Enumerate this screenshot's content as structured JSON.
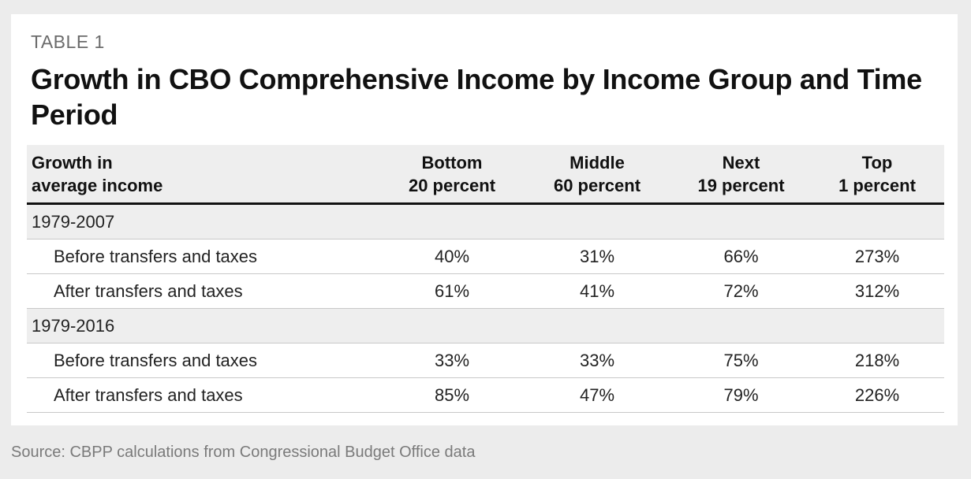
{
  "table": {
    "label": "TABLE 1",
    "title": "Growth in CBO Comprehensive Income by Income Group and Time Period",
    "header": {
      "row_label": [
        "Growth in",
        "average income"
      ],
      "columns": [
        [
          "Bottom",
          "20 percent"
        ],
        [
          "Middle",
          "60 percent"
        ],
        [
          "Next",
          "19 percent"
        ],
        [
          "Top",
          "1 percent"
        ]
      ]
    },
    "sections": [
      {
        "period": "1979-2007",
        "rows": [
          {
            "label": "Before transfers and taxes",
            "values": [
              "40%",
              "31%",
              "66%",
              "273%"
            ]
          },
          {
            "label": "After transfers and taxes",
            "values": [
              "61%",
              "41%",
              "72%",
              "312%"
            ]
          }
        ]
      },
      {
        "period": "1979-2016",
        "rows": [
          {
            "label": "Before transfers and taxes",
            "values": [
              "33%",
              "33%",
              "75%",
              "218%"
            ]
          },
          {
            "label": "After transfers and taxes",
            "values": [
              "85%",
              "47%",
              "79%",
              "226%"
            ]
          }
        ]
      }
    ]
  },
  "source": "Source: CBPP calculations from Congressional Budget Office data"
}
